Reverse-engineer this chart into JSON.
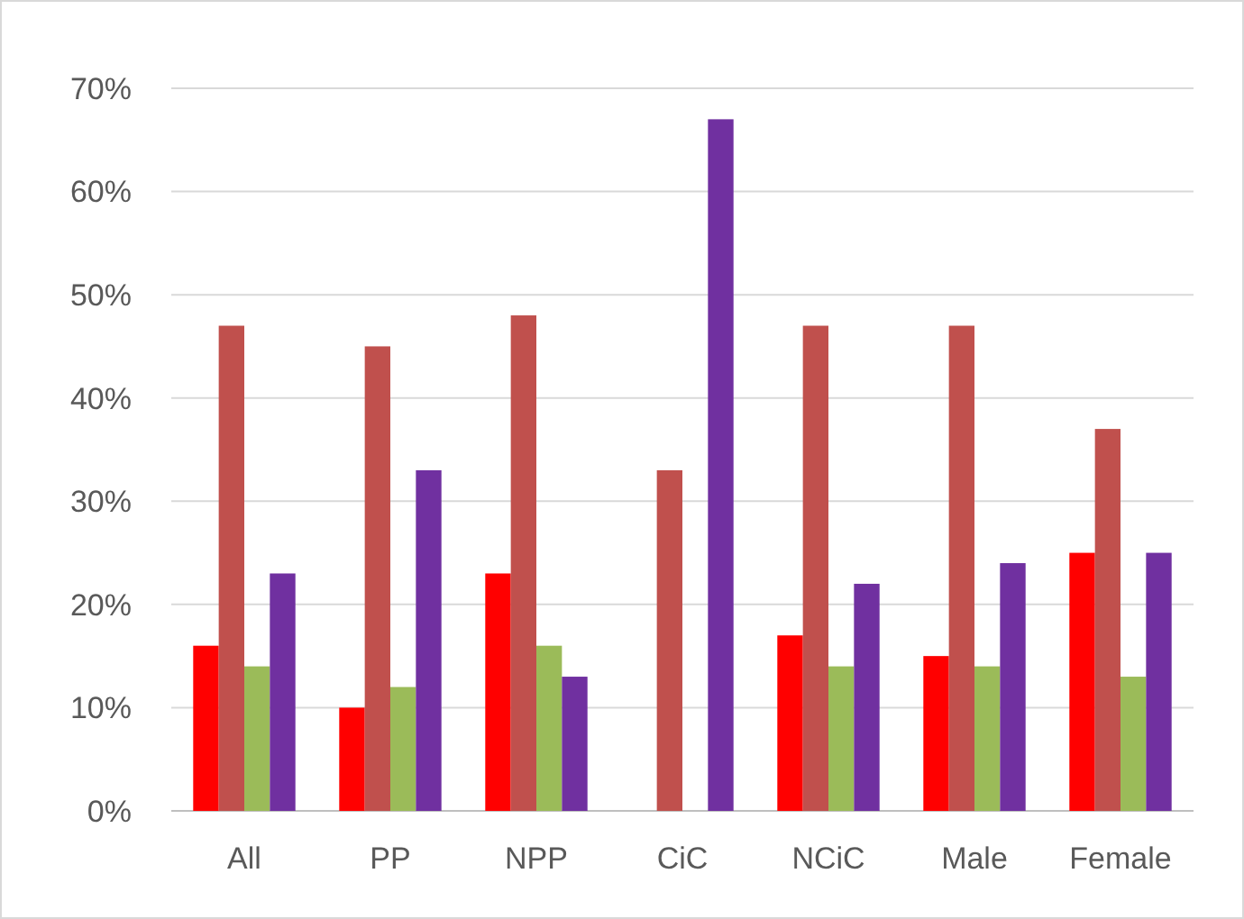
{
  "chart_data": {
    "type": "bar",
    "categories": [
      "All",
      "PP",
      "NPP",
      "CiC",
      "NCiC",
      "Male",
      "Female"
    ],
    "series": [
      {
        "color": "#ff0000",
        "values": [
          16,
          10,
          23,
          0,
          17,
          15,
          25
        ]
      },
      {
        "color": "#c0504d",
        "values": [
          47,
          45,
          48,
          33,
          47,
          47,
          37
        ]
      },
      {
        "color": "#9bbb59",
        "values": [
          14,
          12,
          16,
          0,
          14,
          14,
          13
        ]
      },
      {
        "color": "#7030a0",
        "values": [
          23,
          33,
          13,
          67,
          22,
          24,
          25
        ]
      }
    ],
    "ylim": [
      0,
      70
    ],
    "yticks": [
      {
        "value": 0,
        "label": "0%"
      },
      {
        "value": 10,
        "label": "10%"
      },
      {
        "value": 20,
        "label": "20%"
      },
      {
        "value": 30,
        "label": "30%"
      },
      {
        "value": 40,
        "label": "40%"
      },
      {
        "value": 50,
        "label": "50%"
      },
      {
        "value": 60,
        "label": "60%"
      },
      {
        "value": 70,
        "label": "70%"
      }
    ],
    "grid": "y"
  }
}
